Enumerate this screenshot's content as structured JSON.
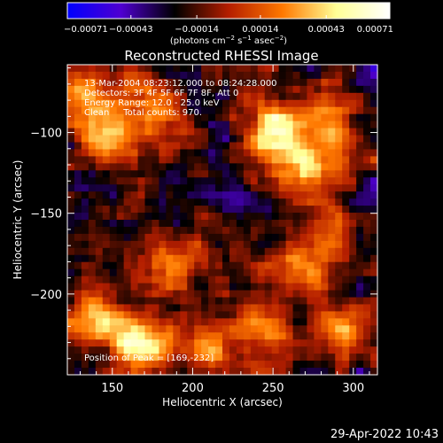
{
  "chart_data": {
    "type": "heatmap",
    "title": "Reconstructed RHESSI Image",
    "xlabel": "Heliocentric X (arcsec)",
    "ylabel": "Heliocentric Y (arcsec)",
    "xlim": [
      122,
      315
    ],
    "ylim": [
      -250,
      -58
    ],
    "x_ticks": [
      "150",
      "200",
      "250",
      "300"
    ],
    "x_tick_values": [
      150,
      200,
      250,
      300
    ],
    "y_ticks": [
      "−100",
      "−150",
      "−200"
    ],
    "y_tick_values": [
      -100,
      -150,
      -200
    ],
    "colorbar": {
      "ticks": [
        "−0.00071",
        "−0.00043",
        "−0.00014",
        "0.00014",
        "0.00043",
        "0.00071"
      ],
      "tick_values": [
        -0.00071,
        -0.00043,
        -0.00014,
        0.00014,
        0.00043,
        0.00071
      ],
      "range": [
        -0.00071,
        0.00071
      ],
      "colors": [
        "#0000ff",
        "#4f00d0",
        "#000000",
        "#b41e00",
        "#ff7800",
        "#ffff96",
        "#ffffff"
      ],
      "unit_prefix": "(photons cm",
      "unit_exp1": "−2",
      "unit_mid": " s",
      "unit_exp2": "−1",
      "unit_mid2": " asec",
      "unit_exp3": "−2",
      "unit_suffix": ")"
    },
    "annotations": {
      "time_range": "13-Mar-2004 08:23:12.000 to 08:24:28.000",
      "detectors": "Detectors: 3F 4F 5F 6F 7F 8F, Att 0",
      "energy_range": "Energy Range: 12.0 - 25.0 keV",
      "method_counts": "Clean     Total counts: 970.",
      "peak_position": "Position of Peak = [169,-232]"
    },
    "bright_sources": [
      {
        "x": 145,
        "y": -105,
        "amplitude": 0.0005
      },
      {
        "x": 250,
        "y": -100,
        "amplitude": 0.0007
      },
      {
        "x": 270,
        "y": -120,
        "amplitude": 0.0006
      },
      {
        "x": 285,
        "y": -93,
        "amplitude": 0.0005
      },
      {
        "x": 135,
        "y": -75,
        "amplitude": 0.0005
      },
      {
        "x": 175,
        "y": -85,
        "amplitude": 0.0004
      },
      {
        "x": 190,
        "y": -185,
        "amplitude": 0.0005
      },
      {
        "x": 265,
        "y": -182,
        "amplitude": 0.0005
      },
      {
        "x": 140,
        "y": -215,
        "amplitude": 0.0005
      },
      {
        "x": 169,
        "y": -232,
        "amplitude": 0.0007
      },
      {
        "x": 245,
        "y": -225,
        "amplitude": 0.0004
      },
      {
        "x": 295,
        "y": -220,
        "amplitude": 0.0004
      },
      {
        "x": 210,
        "y": -230,
        "amplitude": 0.0004
      },
      {
        "x": 290,
        "y": -160,
        "amplitude": 0.0003
      }
    ]
  },
  "footer": {
    "date_stamp": "29-Apr-2022 10:43"
  }
}
